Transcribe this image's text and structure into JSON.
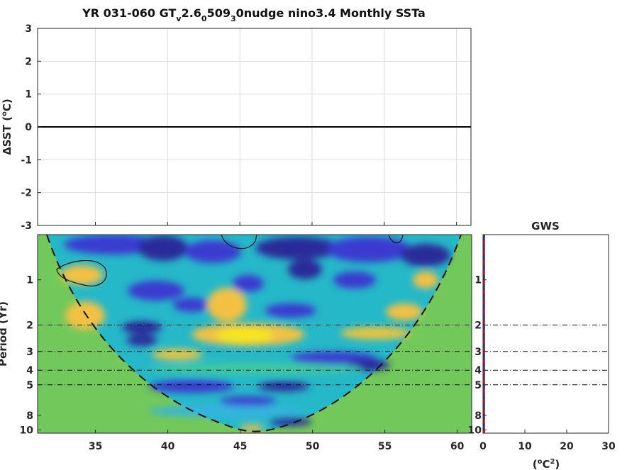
{
  "title": {
    "prefix": "YR 031-060 GT",
    "sub1": "v",
    "mid1": "2.6",
    "sub2": "0",
    "mid2": "509",
    "sub3": "3",
    "suffix": "0nudge nino3.4 Monthly SSTa"
  },
  "chart_data": [
    {
      "type": "line",
      "panel": "time-series",
      "ylabel_prefix": "ΔSST (",
      "ylabel_sup": "o",
      "ylabel_suffix": "C)",
      "xlim": [
        31,
        61
      ],
      "ylim": [
        -3,
        3
      ],
      "yticks": [
        "3",
        "2",
        "1",
        "0",
        "-1",
        "-2",
        "-3"
      ],
      "yticks_values": [
        3,
        2,
        1,
        0,
        -1,
        -2,
        -3
      ],
      "xticks_values": [
        35,
        40,
        45,
        50,
        55,
        60
      ],
      "grid": true,
      "series": [
        {
          "x": [
            31,
            61
          ],
          "y": [
            0,
            0
          ],
          "color": "#000000"
        }
      ]
    },
    {
      "type": "heatmap",
      "panel": "wavelet-power",
      "ylabel": "Period (Yr)",
      "xlim": [
        31,
        61
      ],
      "xticks": [
        "35",
        "40",
        "45",
        "50",
        "55",
        "60"
      ],
      "xticks_values": [
        35,
        40,
        45,
        50,
        55,
        60
      ],
      "yscale": "log",
      "ylim": [
        0.5,
        10.5
      ],
      "yticks": [
        "1",
        "2",
        "3",
        "4",
        "5",
        "8",
        "10"
      ],
      "yticks_values": [
        1,
        2,
        3,
        4,
        5,
        8,
        10
      ],
      "reference_periods": [
        2,
        3,
        4,
        5
      ],
      "cone_of_influence": "dashed",
      "colors": [
        "#3b2ec8",
        "#2f6df0",
        "#1aa7e0",
        "#2cc4b0",
        "#7fcf63",
        "#f2c142",
        "#f6e61e"
      ]
    },
    {
      "type": "line",
      "panel": "global-wavelet-spectrum",
      "title": "GWS",
      "xlabel_prefix": "(",
      "xlabel_sup1": "o",
      "xlabel_mid": "C",
      "xlabel_sup2": "2",
      "xlabel_suffix": ")",
      "xlim": [
        0,
        30
      ],
      "xticks": [
        "0",
        "10",
        "20",
        "30"
      ],
      "xticks_values": [
        0,
        10,
        20,
        30
      ],
      "yscale": "log",
      "ylim": [
        0.5,
        10.5
      ],
      "yticks": [
        "1",
        "2",
        "3",
        "4",
        "5",
        "8",
        "10"
      ],
      "yticks_values": [
        1,
        2,
        3,
        4,
        5,
        8,
        10
      ],
      "reference_periods": [
        2,
        3,
        4,
        5
      ],
      "series": [
        {
          "x": [
            0,
            0
          ],
          "y": [
            0.5,
            10.5
          ],
          "color": "#d62728",
          "style": "solid"
        },
        {
          "x": [
            0,
            0
          ],
          "y": [
            0.5,
            10.5
          ],
          "color": "#1f4fbf",
          "style": "dashed"
        }
      ]
    }
  ]
}
